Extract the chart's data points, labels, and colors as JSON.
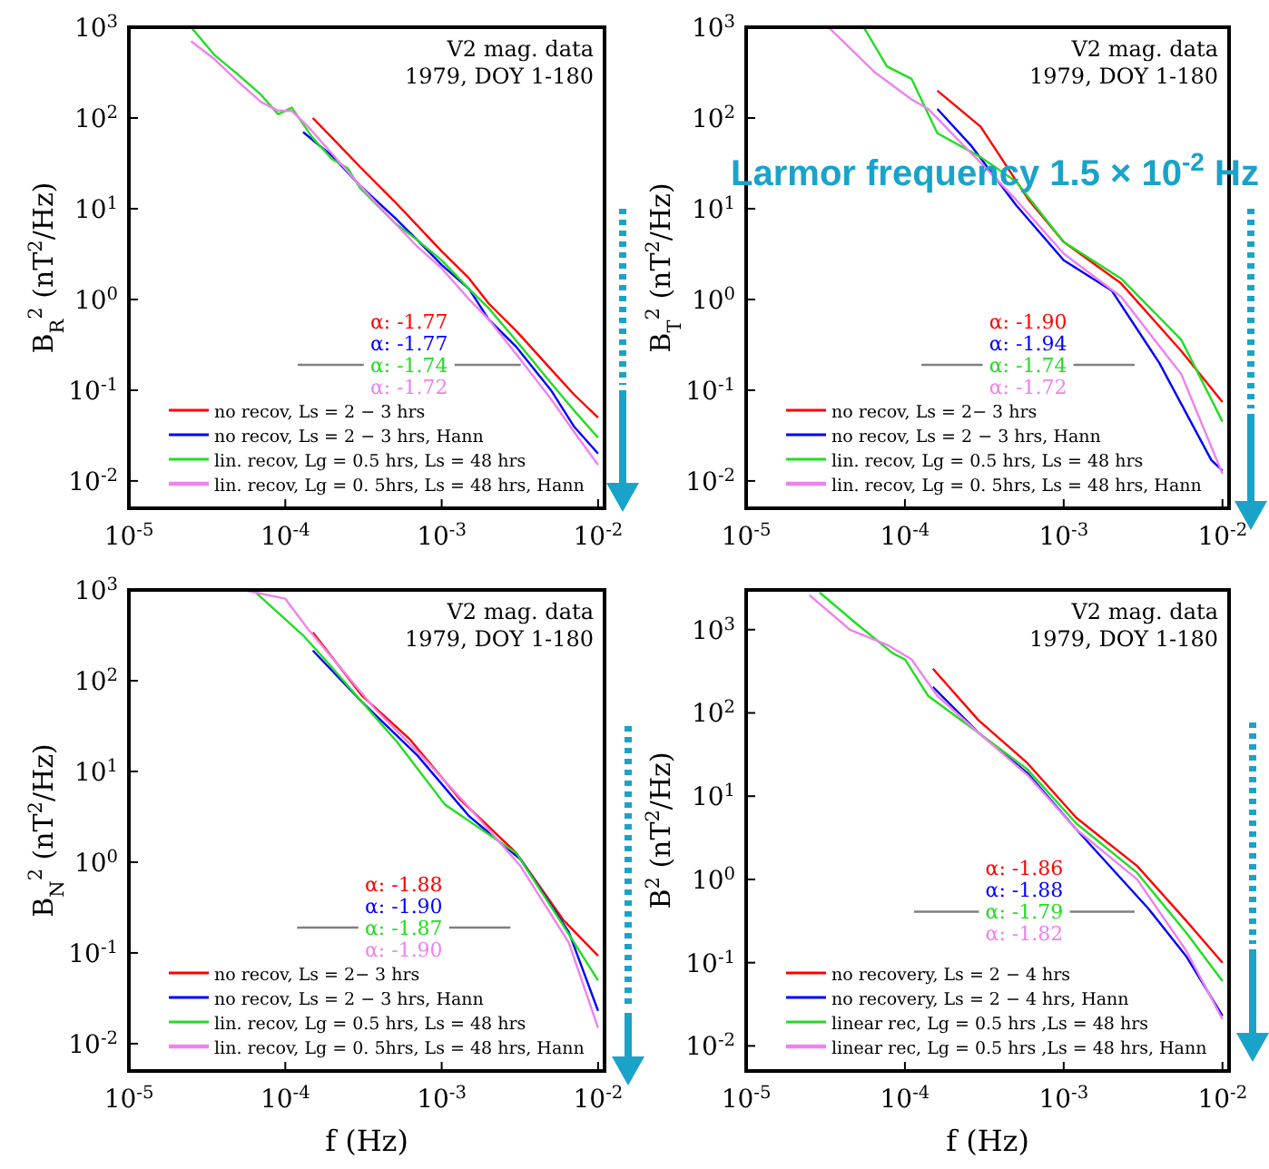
{
  "chart_data": [
    {
      "type": "line",
      "ylabel": "B$_{R}$$^{2}$ (nT$^{2}$/Hz)",
      "log": "xy",
      "grid": false,
      "legend": "bottom left",
      "xlim": [
        1e-05,
        0.011
      ],
      "ylim": [
        0.005,
        1000
      ],
      "xticks": [
        {
          "value": 1e-05,
          "label": "10$^{-5}$"
        },
        {
          "value": 0.0001,
          "label": "10$^{-4}$"
        },
        {
          "value": 0.001,
          "label": "10$^{-3}$"
        },
        {
          "value": 0.01,
          "label": "10$^{-2}$"
        }
      ],
      "yticks": [
        {
          "value": 0.01,
          "label": "10$^{-2}$"
        },
        {
          "value": 0.1,
          "label": "10$^{-1}$"
        },
        {
          "value": 1,
          "label": "10$^{0}$"
        },
        {
          "value": 10,
          "label": "10$^{1}$"
        },
        {
          "value": 100,
          "label": "10$^{2}$"
        },
        {
          "value": 1000,
          "label": "10$^{3}$"
        }
      ],
      "annotations": [
        "V2 mag. data",
        "1979, DOY 1-180",
        "α: -1.77",
        "α: -1.77",
        "α: -1.74",
        "α: -1.72"
      ],
      "series": [
        {
          "name": "no recov,  Ls = 2 − 3 hrs",
          "color": "#ff0000",
          "x": [
            0.00015,
            0.0002,
            0.0003,
            0.0005,
            0.0007,
            0.001,
            0.0015,
            0.002,
            0.003,
            0.005,
            0.007,
            0.01
          ],
          "values": [
            100,
            60,
            29,
            12,
            6.5,
            3.4,
            1.7,
            0.9,
            0.45,
            0.17,
            0.09,
            0.05
          ]
        },
        {
          "name": "no recov,  Ls = 2 − 3 hrs, Hann",
          "color": "#0000ff",
          "x": [
            0.00013,
            0.0002,
            0.0003,
            0.0005,
            0.0007,
            0.001,
            0.0015,
            0.002,
            0.003,
            0.005,
            0.007,
            0.01
          ],
          "values": [
            70,
            38,
            18,
            8,
            4.5,
            2.4,
            1.3,
            0.6,
            0.3,
            0.1,
            0.04,
            0.02
          ]
        },
        {
          "name": "lin. recov, Lg = 0.5 hrs, Ls = 48 hrs",
          "color": "#22dd22",
          "x": [
            2.5e-05,
            3.5e-05,
            5e-05,
            7e-05,
            9e-05,
            0.00011,
            0.00015,
            0.0002,
            0.00025,
            0.0003,
            0.0005,
            0.0007,
            0.001,
            0.0015,
            0.002,
            0.003,
            0.005,
            0.007,
            0.01
          ],
          "values": [
            1000,
            500,
            300,
            180,
            110,
            130,
            60,
            35,
            28,
            17,
            7,
            4.5,
            2.7,
            1.3,
            0.8,
            0.35,
            0.12,
            0.06,
            0.03
          ]
        },
        {
          "name": "lin. recov, Lg = 0. 5hrs, Ls = 48 hrs, Hann",
          "color": "#ee82ee",
          "x": [
            2.5e-05,
            3.5e-05,
            5e-05,
            7e-05,
            9e-05,
            0.00011,
            0.00014,
            0.0002,
            0.0003,
            0.0005,
            0.0007,
            0.001,
            0.0015,
            0.002,
            0.003,
            0.005,
            0.007,
            0.01
          ],
          "values": [
            700,
            450,
            250,
            150,
            120,
            120,
            80,
            40,
            18,
            7,
            3.8,
            2.2,
            1,
            0.6,
            0.25,
            0.08,
            0.035,
            0.015
          ]
        },
        {
          "type": "line",
          "color": "#808080",
          "x": [
            0.00012,
            0.0032
          ],
          "values": [
            0.19,
            0.19
          ]
        }
      ]
    },
    {
      "type": "line",
      "ylabel": "B$_{T}$$^{2}$ (nT$^{2}$/Hz)",
      "log": "xy",
      "grid": false,
      "legend": "bottom left",
      "xlim": [
        1e-05,
        0.011
      ],
      "ylim": [
        0.005,
        1000
      ],
      "xticks": [
        {
          "value": 1e-05,
          "label": "10$^{-5}$"
        },
        {
          "value": 0.0001,
          "label": "10$^{-4}$"
        },
        {
          "value": 0.001,
          "label": "10$^{-3}$"
        },
        {
          "value": 0.01,
          "label": "10$^{-2}$"
        }
      ],
      "yticks": [
        {
          "value": 0.01,
          "label": "10$^{-2}$"
        },
        {
          "value": 0.1,
          "label": "10$^{-1}$"
        },
        {
          "value": 1,
          "label": "10$^{0}$"
        },
        {
          "value": 10,
          "label": "10$^{1}$"
        },
        {
          "value": 100,
          "label": "10$^{2}$"
        },
        {
          "value": 1000,
          "label": "10$^{3}$"
        }
      ],
      "annotations": [
        "V2 mag. data",
        "1979, DOY 1-180",
        "α: -1.90",
        "α: -1.94",
        "α: -1.74",
        "α: -1.72",
        "Larmor frequency 1.5 × 10$^{-2}$ Hz"
      ],
      "series": [
        {
          "name": "no recov,  Ls = 2− 3 hrs",
          "color": "#ff0000",
          "x": [
            0.00016,
            0.0003,
            0.0006,
            0.001,
            0.0023,
            0.0055,
            0.01
          ],
          "values": [
            200,
            80,
            12.6,
            4.3,
            1.5,
            0.27,
            0.074
          ]
        },
        {
          "name": "no recov,  Ls = 2 − 3 hrs, Hann",
          "color": "#0000ff",
          "x": [
            0.00016,
            0.00026,
            0.0005,
            0.001,
            0.002,
            0.004,
            0.0085,
            0.01
          ],
          "values": [
            126,
            50,
            11,
            2.7,
            1.26,
            0.2,
            0.017,
            0.013
          ]
        },
        {
          "name": "lin. recov, Lg = 0.5 hrs, Ls = 48 hrs",
          "color": "#22dd22",
          "x": [
            5.5e-05,
            7.7e-05,
            0.00011,
            0.00016,
            0.0003,
            0.0005,
            0.001,
            0.0023,
            0.0055,
            0.01
          ],
          "values": [
            1000,
            370,
            270,
            68,
            37,
            20,
            4.3,
            1.7,
            0.36,
            0.045
          ]
        },
        {
          "name": "lin. recov, Lg = 0. 5hrs, Ls = 48 hrs, Hann",
          "color": "#ee82ee",
          "x": [
            3.3e-05,
            6.5e-05,
            0.00011,
            0.00014,
            0.000215,
            0.0003,
            0.0005,
            0.001,
            0.0023,
            0.0055,
            0.01
          ],
          "values": [
            1000,
            316,
            160,
            126,
            58,
            32,
            12.6,
            3.2,
            1.07,
            0.15,
            0.012
          ]
        },
        {
          "type": "line",
          "color": "#808080",
          "x": [
            0.000127,
            0.0028
          ],
          "values": [
            0.19,
            0.19
          ]
        }
      ]
    },
    {
      "type": "line",
      "xlabel": "f (Hz)",
      "ylabel": "B$_{N}$$^{2}$ (nT$^{2}$/Hz)",
      "log": "xy",
      "grid": false,
      "legend": "bottom left",
      "xlim": [
        1e-05,
        0.011
      ],
      "ylim": [
        0.005,
        1000
      ],
      "xticks": [
        {
          "value": 1e-05,
          "label": "10$^{-5}$"
        },
        {
          "value": 0.0001,
          "label": "10$^{-4}$"
        },
        {
          "value": 0.001,
          "label": "10$^{-3}$"
        },
        {
          "value": 0.01,
          "label": "10$^{-2}$"
        }
      ],
      "yticks": [
        {
          "value": 0.01,
          "label": "10$^{-2}$"
        },
        {
          "value": 0.1,
          "label": "10$^{-1}$"
        },
        {
          "value": 1,
          "label": "10$^{0}$"
        },
        {
          "value": 10,
          "label": "10$^{1}$"
        },
        {
          "value": 100,
          "label": "10$^{2}$"
        },
        {
          "value": 1000,
          "label": "10$^{3}$"
        }
      ],
      "annotations": [
        "V2 mag. data",
        "1979, DOY 1-180",
        "α: -1.88",
        "α: -1.90",
        "α: -1.87",
        "α: -1.90"
      ],
      "series": [
        {
          "name": "no recov,  Ls = 2− 3 hrs",
          "color": "#ff0000",
          "x": [
            0.00015,
            0.00031,
            0.00062,
            0.0013,
            0.003,
            0.006,
            0.01
          ],
          "values": [
            340,
            68,
            23,
            5,
            1.26,
            0.23,
            0.093
          ]
        },
        {
          "name": "no recov,  Ls = 2 − 3 hrs, Hann",
          "color": "#0000ff",
          "x": [
            0.00015,
            0.00031,
            0.0007,
            0.0015,
            0.0032,
            0.0065,
            0.01
          ],
          "values": [
            215,
            58,
            15,
            3.2,
            1.07,
            0.17,
            0.023
          ]
        },
        {
          "name": "lin. recov, Lg = 0.5 hrs, Ls = 48 hrs",
          "color": "#22dd22",
          "x": [
            6.5e-05,
            0.00013,
            0.00018,
            0.00031,
            0.00052,
            0.00105,
            0.003,
            0.006,
            0.01
          ],
          "values": [
            930,
            316,
            170,
            58,
            21,
            4.3,
            1.26,
            0.2,
            0.05
          ]
        },
        {
          "name": "lin. recov, Lg = 0. 5hrs, Ls = 48 hrs, Hann",
          "color": "#ee82ee",
          "x": [
            5.4e-05,
            0.0001,
            0.00014,
            0.00022,
            0.00037,
            0.00074,
            0.0015,
            0.0032,
            0.0065,
            0.01
          ],
          "values": [
            1000,
            800,
            370,
            146,
            50,
            15,
            4,
            0.9,
            0.13,
            0.015
          ]
        },
        {
          "type": "line",
          "color": "#808080",
          "x": [
            0.000119,
            0.00275
          ],
          "values": [
            0.19,
            0.19
          ]
        }
      ]
    },
    {
      "type": "line",
      "xlabel": "f (Hz)",
      "ylabel": "B$^{2}$ (nT$^{2}$/Hz)",
      "log": "xy",
      "grid": false,
      "legend": "bottom left",
      "xlim": [
        1e-05,
        0.011
      ],
      "ylim": [
        0.005,
        3000
      ],
      "xticks": [
        {
          "value": 1e-05,
          "label": "10$^{-5}$"
        },
        {
          "value": 0.0001,
          "label": "10$^{-4}$"
        },
        {
          "value": 0.001,
          "label": "10$^{-3}$"
        },
        {
          "value": 0.01,
          "label": "10$^{-2}$"
        }
      ],
      "yticks": [
        {
          "value": 0.01,
          "label": "10$^{-2}$"
        },
        {
          "value": 0.1,
          "label": "10$^{-1}$"
        },
        {
          "value": 1,
          "label": "10$^{0}$"
        },
        {
          "value": 10,
          "label": "10$^{1}$"
        },
        {
          "value": 100,
          "label": "10$^{2}$"
        },
        {
          "value": 1000,
          "label": "10$^{3}$"
        }
      ],
      "annotations": [
        "V2 mag. data",
        "1979, DOY 1-180",
        "α: -1.86",
        "α: -1.88",
        "α: -1.79",
        "α: -1.82"
      ],
      "series": [
        {
          "name": "no recovery, Ls = 2 − 4 hrs",
          "color": "#ff0000",
          "x": [
            0.00015,
            0.00029,
            0.00059,
            0.0012,
            0.0029,
            0.0059,
            0.01
          ],
          "values": [
            340,
            82,
            25,
            5.5,
            1.45,
            0.32,
            0.1
          ]
        },
        {
          "name": "no recovery, Ls = 2 − 4 hrs, Hann",
          "color": "#0000ff",
          "x": [
            0.00015,
            0.00029,
            0.00059,
            0.0012,
            0.0034,
            0.0059,
            0.01
          ],
          "values": [
            205,
            58,
            19,
            4,
            0.45,
            0.12,
            0.023
          ]
        },
        {
          "name": "linear rec, Lg = 0.5 hrs ,Ls = 48 hrs",
          "color": "#22dd22",
          "x": [
            2.9e-05,
            4.9e-05,
            8.4e-05,
            0.0001,
            0.00014,
            0.00029,
            0.00059,
            0.0012,
            0.0029,
            0.0059,
            0.01
          ],
          "values": [
            2800,
            1200,
            520,
            440,
            160,
            58,
            21,
            4.7,
            1.2,
            0.23,
            0.06
          ]
        },
        {
          "name": "linear rec, Lg = 0.5 hrs ,Ls = 48 hrs, Hann",
          "color": "#ee82ee",
          "x": [
            2.5e-05,
            4.5e-05,
            7.7e-05,
            0.00011,
            0.00016,
            0.00029,
            0.00059,
            0.0012,
            0.0029,
            0.0059,
            0.01
          ],
          "values": [
            2600,
            1000,
            660,
            440,
            160,
            58,
            18,
            4,
            1,
            0.14,
            0.021
          ]
        },
        {
          "type": "line",
          "color": "#808080",
          "x": [
            0.000114,
            0.0028
          ],
          "values": [
            0.41,
            0.41
          ]
        }
      ]
    }
  ]
}
